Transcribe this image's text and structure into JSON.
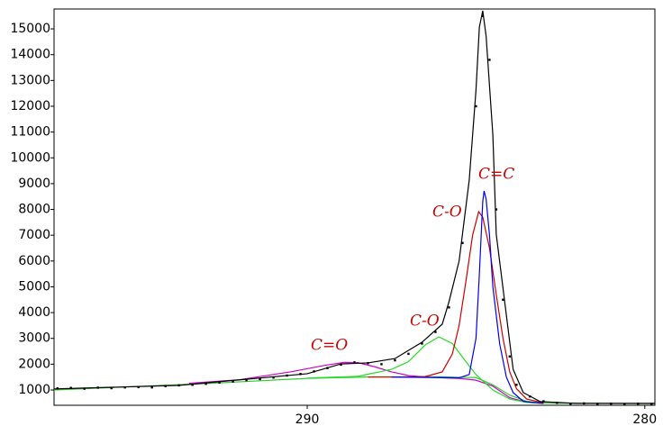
{
  "chart_data": {
    "type": "line",
    "xlim": [
      297.5,
      279.7
    ],
    "ylim": [
      407,
      15770
    ],
    "xticks": [
      290,
      280
    ],
    "yticks": [
      1000,
      2000,
      3000,
      4000,
      5000,
      6000,
      7000,
      8000,
      9000,
      10000,
      11000,
      12000,
      13000,
      14000,
      15000
    ],
    "grid": false,
    "annotations": [
      "C=O",
      "C-O",
      "C-O",
      "C=C"
    ],
    "annotation_color": "#cc0000",
    "series": [
      {
        "mode": "lines",
        "color": "#33cc33",
        "x": [
          297.5,
          293,
          290,
          288,
          286,
          285,
          284.5,
          284,
          283.5,
          283,
          279.7
        ],
        "values": [
          1000,
          1250,
          1450,
          1510,
          1510,
          1480,
          1200,
          800,
          560,
          490,
          470
        ]
      },
      {
        "mode": "lines",
        "color": "#cc00cc",
        "x": [
          293.5,
          292,
          290.5,
          289.5,
          288.9,
          288.5,
          288,
          287.5,
          287,
          286.5,
          286,
          285.5,
          285,
          284.5,
          284,
          283.5,
          283
        ],
        "values": [
          1260,
          1400,
          1700,
          1950,
          2070,
          2060,
          1900,
          1700,
          1560,
          1500,
          1470,
          1450,
          1380,
          1150,
          700,
          520,
          480
        ]
      },
      {
        "mode": "lines",
        "color": "#22dd22",
        "x": [
          290,
          288.5,
          287.5,
          287,
          286.5,
          286.1,
          285.7,
          285.3,
          285,
          284.5,
          284,
          283.5,
          283
        ],
        "values": [
          1460,
          1530,
          1800,
          2100,
          2750,
          3060,
          2800,
          2100,
          1600,
          1000,
          650,
          520,
          480
        ]
      },
      {
        "mode": "lines",
        "color": "#cc0000",
        "x": [
          288.2,
          287,
          286.5,
          286,
          285.7,
          285.5,
          285.3,
          285.1,
          284.92,
          284.8,
          284.6,
          284.4,
          284.2,
          284,
          283.8,
          283.5,
          283
        ],
        "values": [
          1500,
          1500,
          1520,
          1700,
          2400,
          3500,
          5200,
          7000,
          7913,
          7700,
          6500,
          4700,
          3000,
          1700,
          1050,
          650,
          500
        ]
      },
      {
        "mode": "lines",
        "color": "#0000ee",
        "x": [
          287.5,
          286,
          285.5,
          285.2,
          285,
          284.9,
          284.8,
          284.76,
          284.7,
          284.6,
          284.5,
          284.3,
          284.1,
          283.9,
          283.6,
          283
        ],
        "values": [
          1500,
          1480,
          1470,
          1600,
          3000,
          5500,
          8300,
          8717,
          8400,
          7000,
          5000,
          2800,
          1500,
          900,
          560,
          480
        ]
      },
      {
        "mode": "lines",
        "color": "#000000",
        "x": [
          297.5,
          293.8,
          290,
          289,
          288.2,
          287.4,
          286.6,
          286,
          285.8,
          285.5,
          285.2,
          285,
          284.9,
          284.8,
          284.7,
          284.5,
          284.4,
          284.1,
          283.9,
          283.6,
          283.1,
          282,
          279.7
        ],
        "values": [
          1040,
          1180,
          1630,
          2010,
          2050,
          2220,
          2850,
          3550,
          4420,
          6000,
          9140,
          12630,
          15070,
          15700,
          14720,
          10880,
          7040,
          3900,
          1800,
          900,
          550,
          480,
          480
        ]
      },
      {
        "mode": "markers",
        "color": "#000000",
        "x": [
          297.4,
          297,
          296.6,
          296.2,
          295.8,
          295.4,
          295,
          294.6,
          294.2,
          293.8,
          293.4,
          293,
          292.6,
          292.2,
          291.8,
          291.4,
          291,
          290.6,
          290.2,
          289.8,
          289.4,
          289,
          288.6,
          288.2,
          287.8,
          287.4,
          287,
          286.6,
          286.2,
          285.8,
          285.4,
          285,
          284.8,
          284.6,
          284.4,
          284.2,
          284,
          283.8,
          283.4,
          283,
          282.6,
          282.2,
          281.8,
          281.4,
          281,
          280.6,
          280.2,
          279.8
        ],
        "values": [
          1060,
          1080,
          1050,
          1090,
          1070,
          1100,
          1110,
          1100,
          1150,
          1180,
          1200,
          1240,
          1290,
          1330,
          1380,
          1420,
          1480,
          1560,
          1620,
          1720,
          1850,
          1980,
          2070,
          2040,
          2000,
          2150,
          2400,
          2800,
          3250,
          4200,
          6700,
          12000,
          15500,
          13800,
          8000,
          4500,
          2300,
          1200,
          750,
          560,
          500,
          470,
          480,
          460,
          470,
          450,
          470,
          460
        ]
      }
    ]
  }
}
